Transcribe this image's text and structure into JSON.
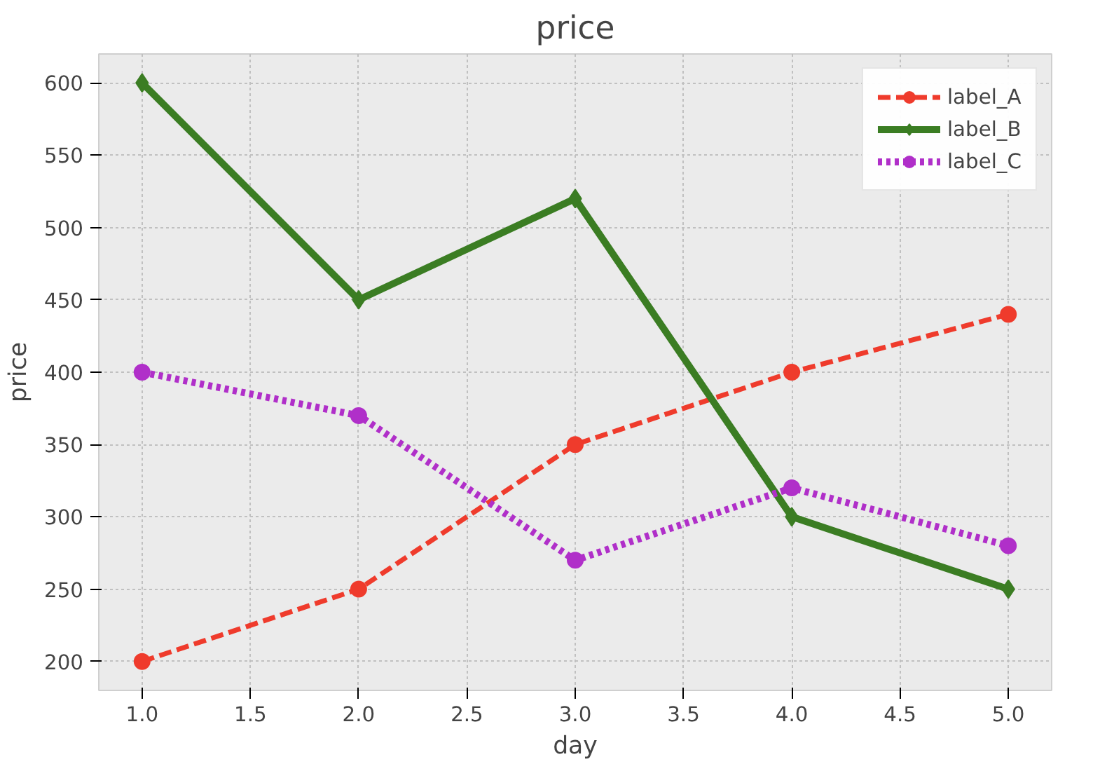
{
  "chart_data": {
    "type": "line",
    "title": "price",
    "xlabel": "day",
    "ylabel": "price",
    "x": [
      1.0,
      2.0,
      3.0,
      4.0,
      5.0
    ],
    "series": [
      {
        "name": "label_A",
        "color": "#ef3b2c",
        "values": [
          200,
          250,
          350,
          400,
          440
        ],
        "marker": "circle",
        "line_style": "dashed"
      },
      {
        "name": "label_B",
        "color": "#3b7d23",
        "values": [
          600,
          450,
          520,
          300,
          250
        ],
        "marker": "diamond",
        "line_style": "solid"
      },
      {
        "name": "label_C",
        "color": "#b02fc9",
        "values": [
          400,
          370,
          270,
          320,
          280
        ],
        "marker": "circle",
        "line_style": "dotted"
      }
    ],
    "xlim": [
      0.8,
      5.2
    ],
    "ylim": [
      180,
      620
    ],
    "xticks": [
      {
        "value": 1.0,
        "label": "1.0"
      },
      {
        "value": 1.5,
        "label": "1.5"
      },
      {
        "value": 2.0,
        "label": "2.0"
      },
      {
        "value": 2.5,
        "label": "2.5"
      },
      {
        "value": 3.0,
        "label": "3.0"
      },
      {
        "value": 3.5,
        "label": "3.5"
      },
      {
        "value": 4.0,
        "label": "4.0"
      },
      {
        "value": 4.5,
        "label": "4.5"
      },
      {
        "value": 5.0,
        "label": "5.0"
      }
    ],
    "yticks": [
      200,
      250,
      300,
      350,
      400,
      450,
      500,
      550,
      600
    ],
    "grid": true,
    "legend": "top right"
  }
}
